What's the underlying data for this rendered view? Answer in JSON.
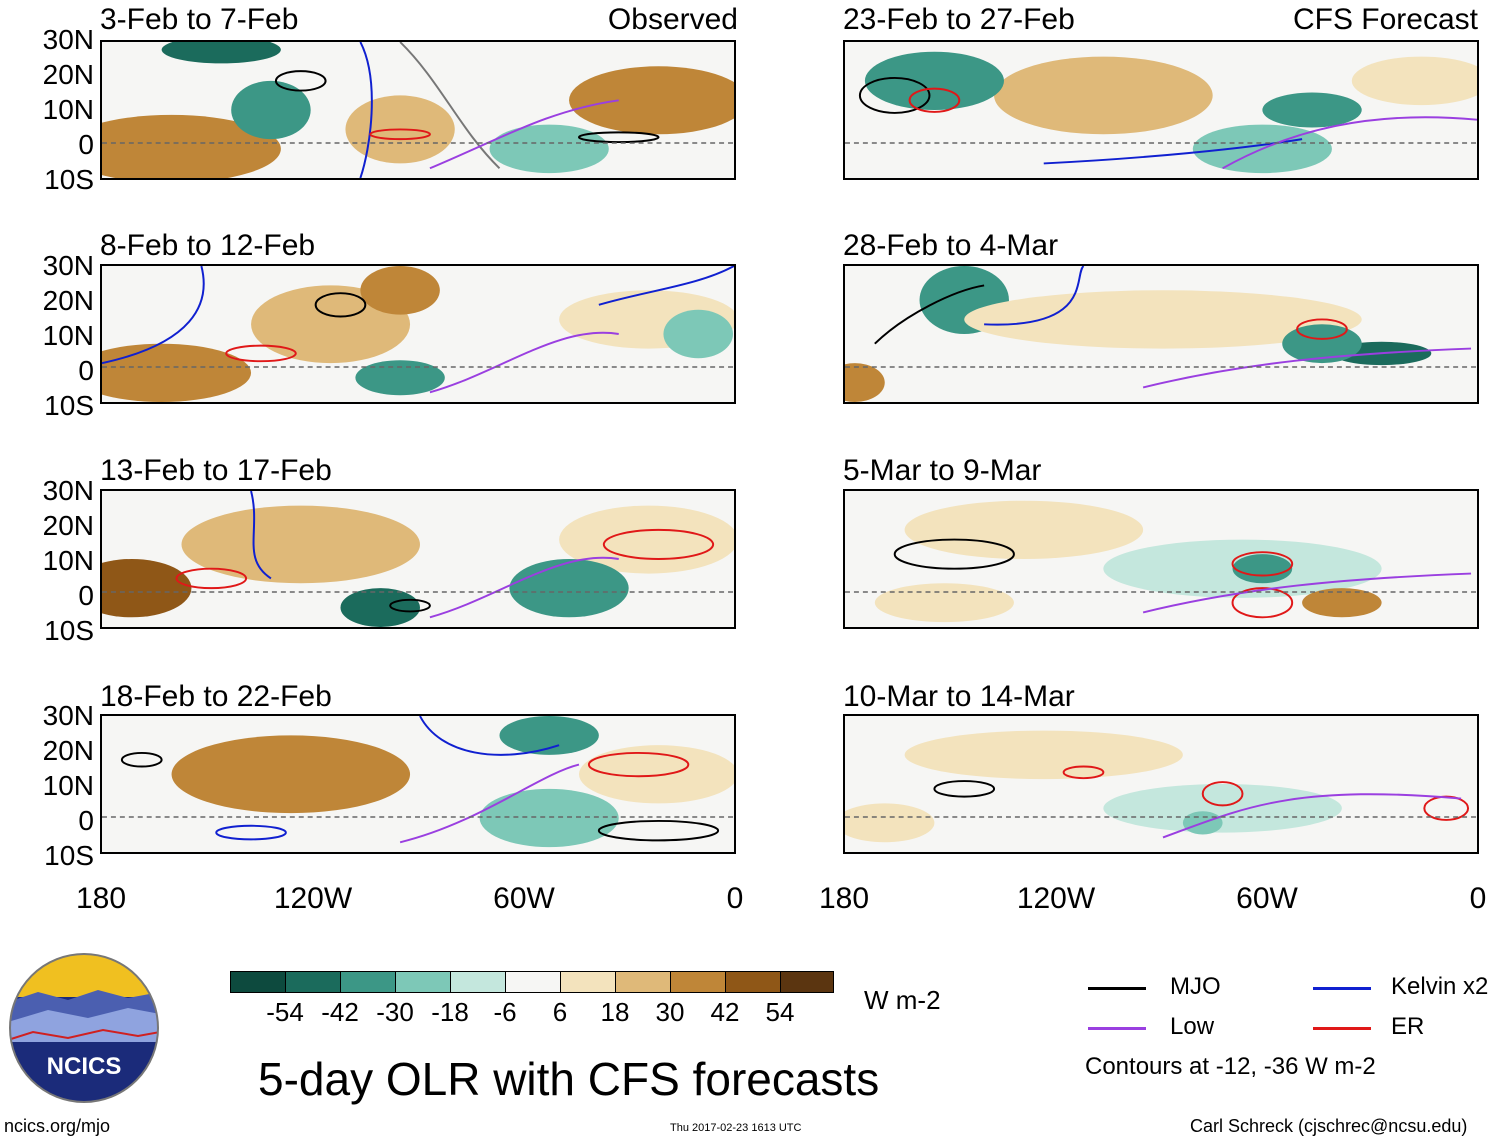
{
  "header": {
    "observed_label": "Observed",
    "forecast_label": "CFS Forecast"
  },
  "observed_panels": [
    {
      "period": "3-Feb to 7-Feb"
    },
    {
      "period": "8-Feb to 12-Feb"
    },
    {
      "period": "13-Feb to 17-Feb"
    },
    {
      "period": "18-Feb to 22-Feb"
    }
  ],
  "forecast_panels": [
    {
      "period": "23-Feb to 27-Feb"
    },
    {
      "period": "28-Feb to 4-Mar"
    },
    {
      "period": "5-Mar to 9-Mar"
    },
    {
      "period": "10-Mar to 14-Mar"
    }
  ],
  "axes": {
    "lat_labels": [
      "30N",
      "20N",
      "10N",
      "0",
      "10S"
    ],
    "lon_labels": [
      "180",
      "120W",
      "60W",
      "0"
    ]
  },
  "colorbar": {
    "units": "W m-2",
    "tick_labels": [
      "-54",
      "-42",
      "-30",
      "-18",
      "-6",
      "6",
      "18",
      "30",
      "42",
      "54"
    ],
    "colors": [
      "#0d4a3e",
      "#1b6b5c",
      "#3c9786",
      "#7dc8b7",
      "#c4e7dd",
      "#f6f6f4",
      "#f3e3bd",
      "#dfb979",
      "#bf8638",
      "#8f5717",
      "#5b3510"
    ]
  },
  "legend": {
    "items": [
      {
        "label": "MJO",
        "color": "#000000"
      },
      {
        "label": "Kelvin x2",
        "color": "#1020d0"
      },
      {
        "label": "Low",
        "color": "#9a3fe0"
      },
      {
        "label": "ER",
        "color": "#e01818"
      }
    ],
    "note": "Contours at -12, -36 W m-2"
  },
  "title": "5-day OLR with CFS forecasts",
  "logo": {
    "text": "NCICS"
  },
  "footer": {
    "url": "ncics.org/mjo",
    "timestamp": "Thu 2017-02-23 1613 UTC",
    "credit": "Carl Schreck (cjschrec@ncsu.edu)"
  }
}
